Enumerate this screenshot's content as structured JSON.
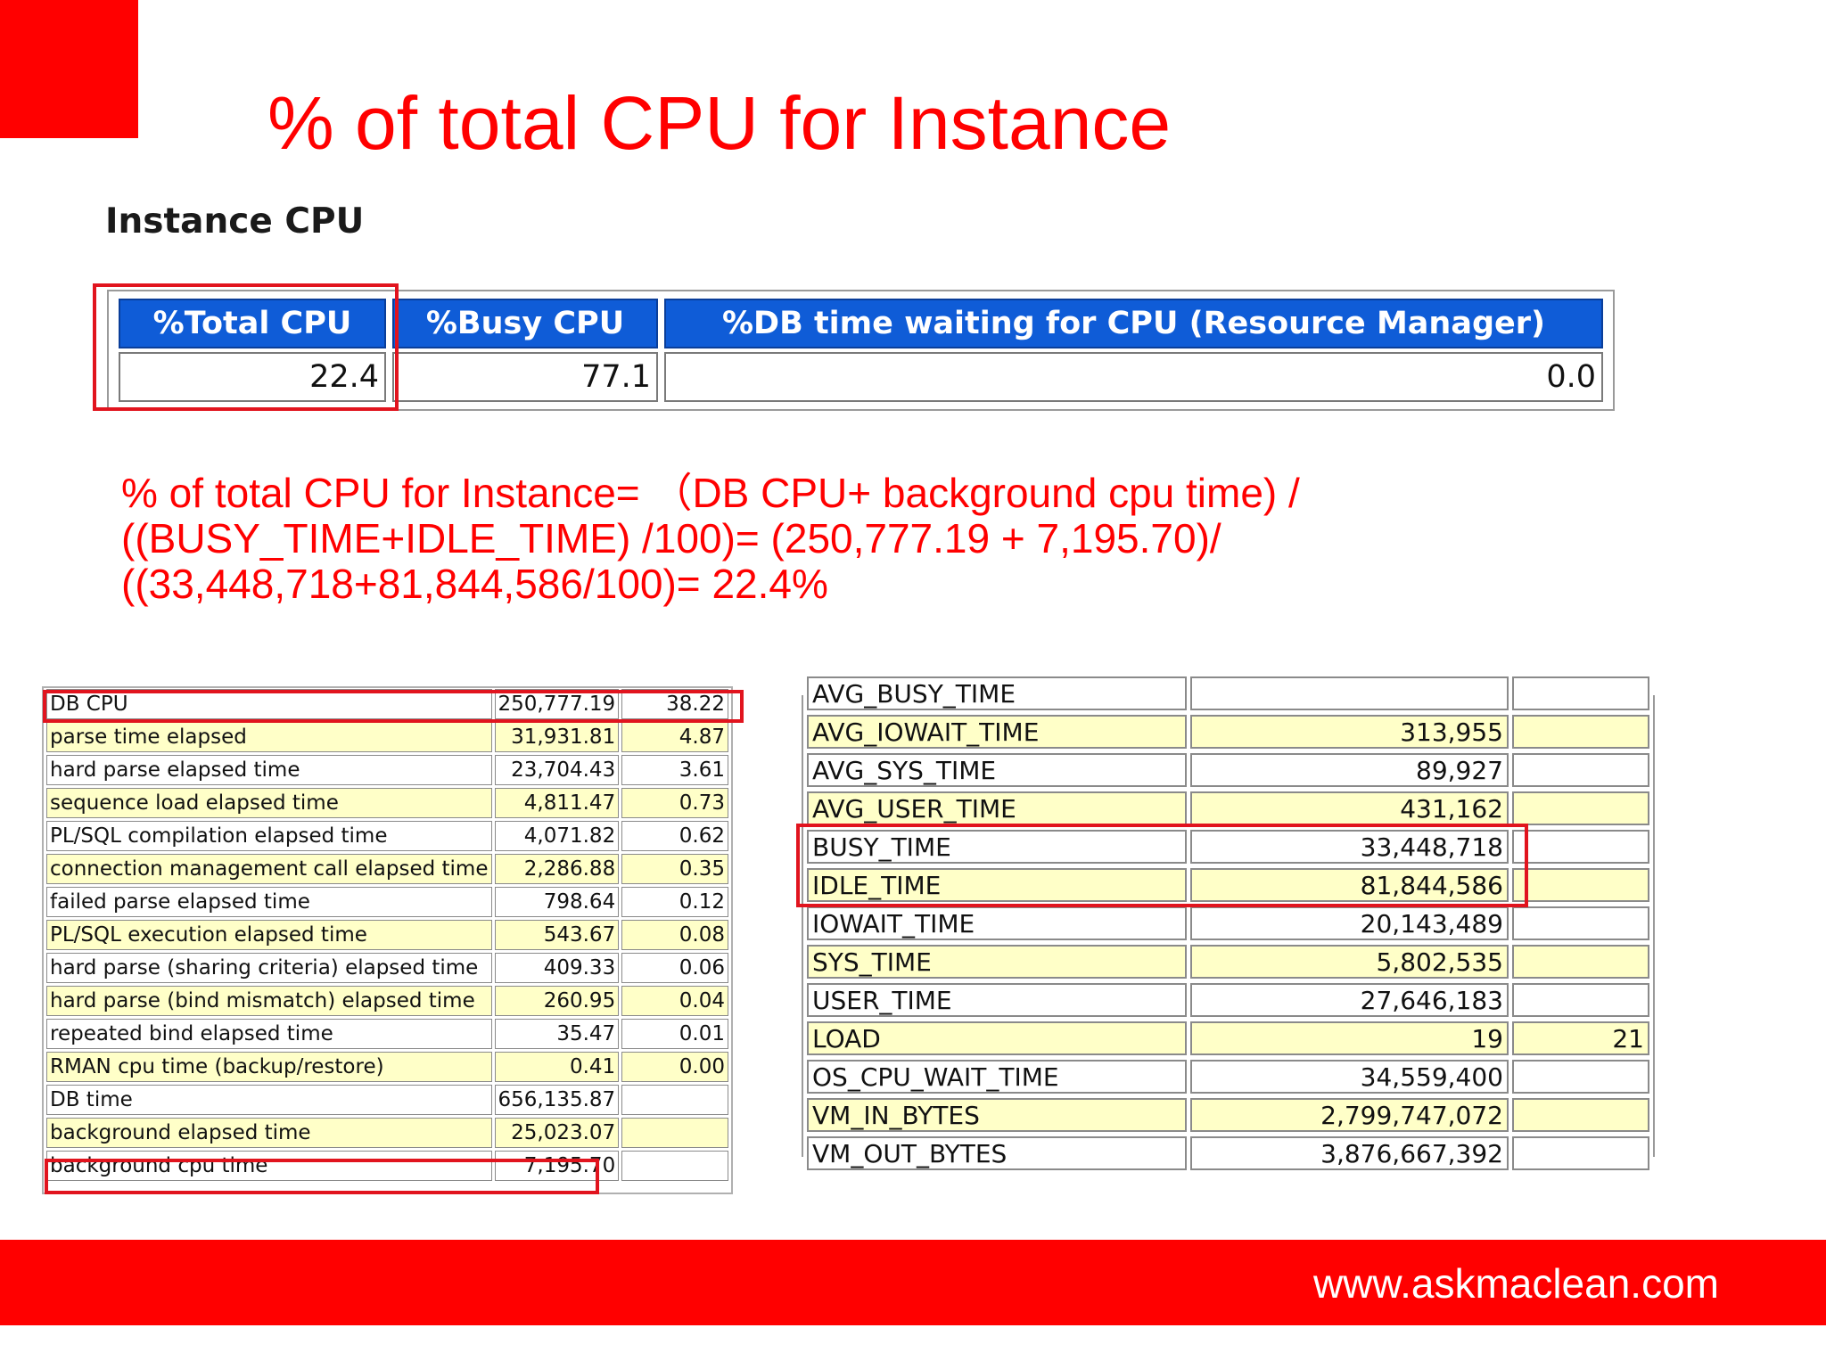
{
  "title": "% of total CPU for Instance",
  "instance_cpu": {
    "heading": "Instance CPU",
    "headers": [
      "%Total CPU",
      "%Busy CPU",
      "%DB time waiting for CPU (Resource Manager)"
    ],
    "values": [
      "22.4",
      "77.1",
      "0.0"
    ]
  },
  "formula": {
    "lines": [
      "% of total CPU for Instance=  （DB CPU+ background cpu time) /",
      "((BUSY_TIME+IDLE_TIME) /100)= (250,777.19 + 7,195.70)/",
      "((33,448,718+81,844,586/100)= 22.4%"
    ]
  },
  "time_model": {
    "rows": [
      {
        "stat": "DB CPU",
        "time": "250,777.19",
        "pct": "38.22"
      },
      {
        "stat": "parse time elapsed",
        "time": "31,931.81",
        "pct": "4.87"
      },
      {
        "stat": "hard parse elapsed time",
        "time": "23,704.43",
        "pct": "3.61"
      },
      {
        "stat": "sequence load elapsed time",
        "time": "4,811.47",
        "pct": "0.73"
      },
      {
        "stat": "PL/SQL compilation elapsed time",
        "time": "4,071.82",
        "pct": "0.62"
      },
      {
        "stat": "connection management call elapsed time",
        "time": "2,286.88",
        "pct": "0.35"
      },
      {
        "stat": "failed parse elapsed time",
        "time": "798.64",
        "pct": "0.12"
      },
      {
        "stat": "PL/SQL execution elapsed time",
        "time": "543.67",
        "pct": "0.08"
      },
      {
        "stat": "hard parse (sharing criteria) elapsed time",
        "time": "409.33",
        "pct": "0.06"
      },
      {
        "stat": "hard parse (bind mismatch) elapsed time",
        "time": "260.95",
        "pct": "0.04"
      },
      {
        "stat": "repeated bind elapsed time",
        "time": "35.47",
        "pct": "0.01"
      },
      {
        "stat": "RMAN cpu time (backup/restore)",
        "time": "0.41",
        "pct": "0.00"
      },
      {
        "stat": "DB time",
        "time": "656,135.87",
        "pct": ""
      },
      {
        "stat": "background elapsed time",
        "time": "25,023.07",
        "pct": ""
      },
      {
        "stat": "background cpu time",
        "time": "7,195.70",
        "pct": ""
      }
    ]
  },
  "os_stats": {
    "rows": [
      {
        "stat": "AVG_BUSY_TIME",
        "value": "",
        "extra": ""
      },
      {
        "stat": "AVG_IOWAIT_TIME",
        "value": "313,955",
        "extra": ""
      },
      {
        "stat": "AVG_SYS_TIME",
        "value": "89,927",
        "extra": ""
      },
      {
        "stat": "AVG_USER_TIME",
        "value": "431,162",
        "extra": ""
      },
      {
        "stat": "BUSY_TIME",
        "value": "33,448,718",
        "extra": ""
      },
      {
        "stat": "IDLE_TIME",
        "value": "81,844,586",
        "extra": ""
      },
      {
        "stat": "IOWAIT_TIME",
        "value": "20,143,489",
        "extra": ""
      },
      {
        "stat": "SYS_TIME",
        "value": "5,802,535",
        "extra": ""
      },
      {
        "stat": "USER_TIME",
        "value": "27,646,183",
        "extra": ""
      },
      {
        "stat": "LOAD",
        "value": "19",
        "extra": "21"
      },
      {
        "stat": "OS_CPU_WAIT_TIME",
        "value": "34,559,400",
        "extra": ""
      },
      {
        "stat": "VM_IN_BYTES",
        "value": "2,799,747,072",
        "extra": ""
      },
      {
        "stat": "VM_OUT_BYTES",
        "value": "3,876,667,392",
        "extra": ""
      }
    ]
  },
  "footer": {
    "url": "www.askmaclean.com"
  },
  "colors": {
    "brand_red": "#ff0000",
    "header_blue": "#0f5cd7",
    "row_yellow": "#ffffc8",
    "highlight_box": "#e1141e"
  }
}
